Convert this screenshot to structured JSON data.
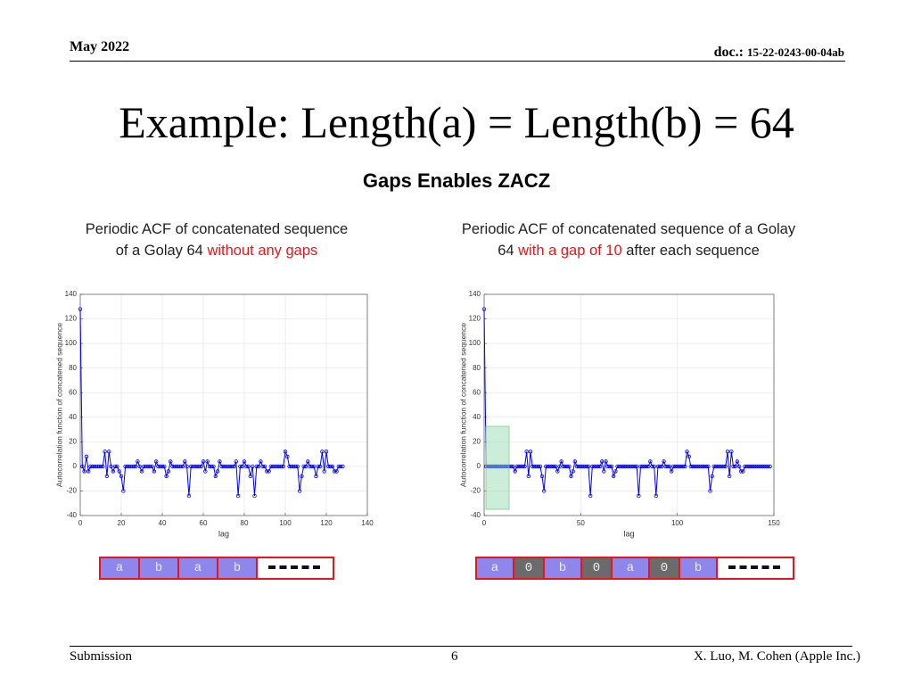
{
  "header": {
    "date": "May 2022",
    "doc_label": "doc.:",
    "doc_number": "15-22-0243-00-04ab"
  },
  "title": "Example: Length(a) = Length(b) = 64",
  "subtitle": "Gaps Enables ZACZ",
  "captions": [
    {
      "parts": [
        "Periodic ACF of concatenated sequence",
        "of a Golay 64",
        "without any gaps"
      ]
    },
    {
      "parts": [
        "Periodic ACF of concatenated sequence of a Golay",
        "64",
        "with a gap of 10",
        "after each sequence"
      ]
    }
  ],
  "chart_data": [
    {
      "type": "line",
      "color": "#0000ff",
      "xlabel": "lag",
      "ylabel": "Autocorrelation function of concatened sequence",
      "xlim": [
        0,
        140
      ],
      "ylim": [
        -40,
        140
      ],
      "xticks": [
        0,
        20,
        40,
        60,
        80,
        100,
        120,
        140
      ],
      "yticks": [
        -40,
        -20,
        0,
        20,
        40,
        60,
        80,
        100,
        120,
        140
      ],
      "grid": true,
      "x": [
        0,
        1,
        2,
        3,
        4,
        5,
        6,
        7,
        8,
        9,
        10,
        11,
        12,
        13,
        14,
        15,
        16,
        17,
        18,
        19,
        20,
        21,
        22,
        23,
        24,
        25,
        26,
        27,
        28,
        29,
        30,
        31,
        32,
        33,
        34,
        35,
        36,
        37,
        38,
        39,
        40,
        41,
        42,
        43,
        44,
        45,
        46,
        47,
        48,
        49,
        50,
        51,
        52,
        53,
        54,
        55,
        56,
        57,
        58,
        59,
        60,
        61,
        62,
        63,
        64,
        65,
        66,
        67,
        68,
        69,
        70,
        71,
        72,
        73,
        74,
        75,
        76,
        77,
        78,
        79,
        80,
        81,
        82,
        83,
        84,
        85,
        86,
        87,
        88,
        89,
        90,
        91,
        92,
        93,
        94,
        95,
        96,
        97,
        98,
        99,
        100,
        101,
        102,
        103,
        104,
        105,
        106,
        107,
        108,
        109,
        110,
        111,
        112,
        113,
        114,
        115,
        116,
        117,
        118,
        119,
        120,
        121,
        122,
        123,
        124,
        125,
        126,
        127,
        128
      ],
      "values": [
        128,
        0,
        -4,
        8,
        -4,
        0,
        0,
        0,
        0,
        0,
        0,
        0,
        12,
        -8,
        12,
        0,
        -4,
        0,
        0,
        -4,
        -8,
        -20,
        0,
        0,
        0,
        0,
        0,
        0,
        4,
        0,
        -4,
        0,
        0,
        0,
        0,
        0,
        -4,
        4,
        0,
        0,
        0,
        0,
        -8,
        -4,
        4,
        0,
        0,
        0,
        0,
        0,
        0,
        4,
        0,
        -24,
        0,
        0,
        0,
        0,
        0,
        0,
        4,
        -4,
        4,
        0,
        0,
        0,
        -8,
        -4,
        4,
        0,
        0,
        0,
        0,
        0,
        0,
        0,
        4,
        -24,
        0,
        0,
        4,
        0,
        0,
        -8,
        0,
        -24,
        0,
        0,
        4,
        0,
        0,
        -4,
        -4,
        0,
        0,
        0,
        0,
        0,
        0,
        0,
        12,
        8,
        0,
        0,
        0,
        0,
        0,
        -20,
        -8,
        0,
        0,
        4,
        0,
        0,
        0,
        -8,
        0,
        0,
        12,
        -4,
        12,
        0,
        0,
        0,
        -4,
        -4,
        0,
        0,
        0
      ]
    },
    {
      "type": "line",
      "color": "#0000ff",
      "xlabel": "lag",
      "ylabel": "Autocorrelation function of concatened sequence",
      "xlim": [
        0,
        150
      ],
      "ylim": [
        -40,
        140
      ],
      "xticks": [
        0,
        50,
        100,
        150
      ],
      "yticks": [
        -40,
        -20,
        0,
        20,
        40,
        60,
        80,
        100,
        120,
        140
      ],
      "grid": true,
      "x": [
        0,
        1,
        2,
        3,
        4,
        5,
        6,
        7,
        8,
        9,
        10,
        11,
        12,
        13,
        14,
        15,
        16,
        17,
        18,
        19,
        20,
        21,
        22,
        23,
        24,
        25,
        26,
        27,
        28,
        29,
        30,
        31,
        32,
        33,
        34,
        35,
        36,
        37,
        38,
        39,
        40,
        41,
        42,
        43,
        44,
        45,
        46,
        47,
        48,
        49,
        50,
        51,
        52,
        53,
        54,
        55,
        56,
        57,
        58,
        59,
        60,
        61,
        62,
        63,
        64,
        65,
        66,
        67,
        68,
        69,
        70,
        71,
        72,
        73,
        74,
        75,
        76,
        77,
        78,
        79,
        80,
        81,
        82,
        83,
        84,
        85,
        86,
        87,
        88,
        89,
        90,
        91,
        92,
        93,
        94,
        95,
        96,
        97,
        98,
        99,
        100,
        101,
        102,
        103,
        104,
        105,
        106,
        107,
        108,
        109,
        110,
        111,
        112,
        113,
        114,
        115,
        116,
        117,
        118,
        119,
        120,
        121,
        122,
        123,
        124,
        125,
        126,
        127,
        128,
        129,
        130,
        131,
        132,
        133,
        134,
        135,
        136,
        137,
        138,
        139,
        140,
        141,
        142,
        143,
        144,
        145,
        146,
        147,
        148
      ],
      "values": [
        128,
        0,
        0,
        0,
        0,
        0,
        0,
        0,
        0,
        0,
        0,
        0,
        0,
        0,
        0,
        0,
        -4,
        0,
        0,
        0,
        0,
        0,
        12,
        -8,
        12,
        0,
        0,
        0,
        0,
        0,
        -8,
        -20,
        0,
        0,
        0,
        0,
        0,
        0,
        -4,
        0,
        4,
        0,
        0,
        0,
        0,
        -8,
        -4,
        4,
        0,
        0,
        0,
        0,
        0,
        0,
        0,
        -24,
        0,
        0,
        0,
        0,
        0,
        4,
        -4,
        4,
        0,
        0,
        0,
        -8,
        -4,
        0,
        0,
        0,
        0,
        0,
        0,
        0,
        0,
        0,
        0,
        0,
        -24,
        0,
        0,
        0,
        0,
        0,
        4,
        0,
        0,
        -24,
        0,
        0,
        0,
        4,
        0,
        0,
        0,
        -4,
        0,
        0,
        0,
        0,
        0,
        0,
        0,
        12,
        8,
        0,
        0,
        0,
        0,
        0,
        0,
        0,
        0,
        0,
        0,
        -20,
        -8,
        0,
        0,
        0,
        0,
        0,
        0,
        0,
        12,
        -8,
        12,
        0,
        0,
        4,
        0,
        -4,
        -4,
        0,
        0,
        0,
        0,
        0,
        0,
        0,
        0,
        0,
        0,
        0,
        0,
        0,
        0
      ]
    }
  ],
  "sequences": [
    [
      "a",
      "b",
      "a",
      "b"
    ],
    [
      "a",
      "0",
      "b",
      "0",
      "a",
      "0",
      "b"
    ]
  ],
  "footer": {
    "left": "Submission",
    "page": "6",
    "right": "X. Luo, M. Cohen (Apple Inc.)"
  }
}
